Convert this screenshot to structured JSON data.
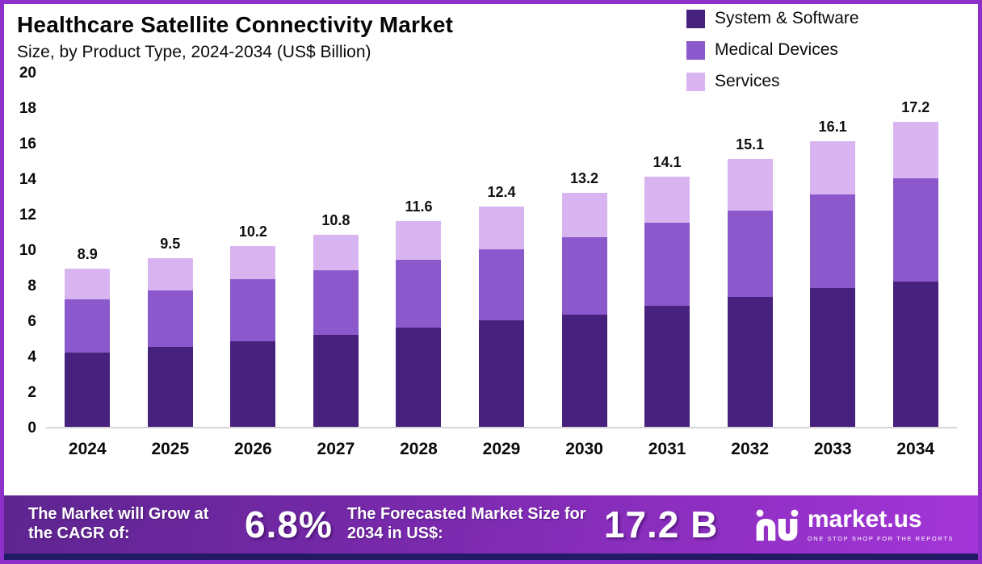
{
  "header": {
    "title": "Healthcare Satellite Connectivity Market",
    "subtitle": "Size, by Product Type, 2024-2034 (US$ Billion)"
  },
  "chart_data": {
    "type": "bar",
    "stacked": true,
    "title": "Healthcare Satellite Connectivity Market Size, by Product Type, 2024-2034 (US$ Billion)",
    "categories": [
      "2024",
      "2025",
      "2026",
      "2027",
      "2028",
      "2029",
      "2030",
      "2031",
      "2032",
      "2033",
      "2034"
    ],
    "series": [
      {
        "name": "System & Software",
        "color": "#47217e",
        "values": [
          4.2,
          4.5,
          4.8,
          5.2,
          5.6,
          6.0,
          6.3,
          6.8,
          7.3,
          7.8,
          8.2
        ]
      },
      {
        "name": "Medical Devices",
        "color": "#8b59cb",
        "values": [
          3.0,
          3.2,
          3.5,
          3.6,
          3.8,
          4.0,
          4.4,
          4.7,
          4.9,
          5.3,
          5.8
        ]
      },
      {
        "name": "Services",
        "color": "#d8b4f0",
        "values": [
          1.7,
          1.8,
          1.9,
          2.0,
          2.2,
          2.4,
          2.5,
          2.6,
          2.9,
          3.0,
          3.2
        ]
      }
    ],
    "totals": [
      8.9,
      9.5,
      10.2,
      10.8,
      11.6,
      12.4,
      13.2,
      14.1,
      15.1,
      16.1,
      17.2
    ],
    "xlabel": "",
    "ylabel": "",
    "ylim": [
      0,
      20
    ],
    "ytick_step": 2,
    "grid": false,
    "legend_position": "top-right"
  },
  "footer": {
    "cagr_label": "The Market will Grow at the CAGR of:",
    "cagr_value": "6.8%",
    "forecast_label": "The Forecasted Market Size for 2034 in US$:",
    "forecast_value": "17.2 B",
    "brand": "market.us",
    "brand_tagline": "ONE STOP SHOP FOR THE REPORTS"
  }
}
